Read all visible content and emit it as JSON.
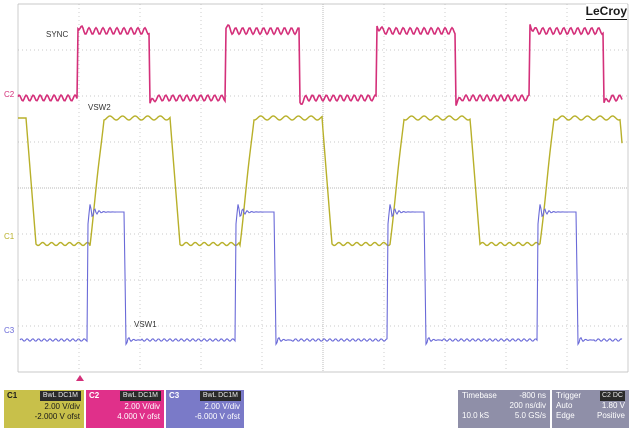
{
  "brand": "LeCroy",
  "colors": {
    "sync": "#d4307a",
    "vsw2": "#b8b02a",
    "vsw1": "#6a6ad8",
    "grid": "#b8b8b8",
    "c1_panel": "#c8c04a",
    "c2_panel": "#e0308a",
    "c3_panel": "#7a7ac8",
    "info_panel": "#8f8fa8"
  },
  "traces": {
    "sync_label": "SYNC",
    "vsw2_label": "VSW2",
    "vsw1_label": "VSW1"
  },
  "markers": {
    "c2": "C2",
    "c1": "C1",
    "c3": "C3"
  },
  "channels": [
    {
      "name": "C1",
      "tag": "BwL DC1M",
      "scale": "2.00 V/div",
      "offset": "-2.000 V ofst"
    },
    {
      "name": "C2",
      "tag": "BwL DC1M",
      "scale": "2.00 V/div",
      "offset": "4.000 V ofst"
    },
    {
      "name": "C3",
      "tag": "BwL DC1M",
      "scale": "2.00 V/div",
      "offset": "-6.000 V ofst"
    }
  ],
  "timebase": {
    "label": "Timebase",
    "delay": "-800 ns",
    "per_div": "200 ns/div",
    "samples": "10.0 kS",
    "rate": "5.0 GS/s"
  },
  "trigger": {
    "label": "Trigger",
    "tag": "C2 DC",
    "mode": "Auto",
    "level": "1.80 V",
    "type": "Edge",
    "slope": "Positive"
  }
}
